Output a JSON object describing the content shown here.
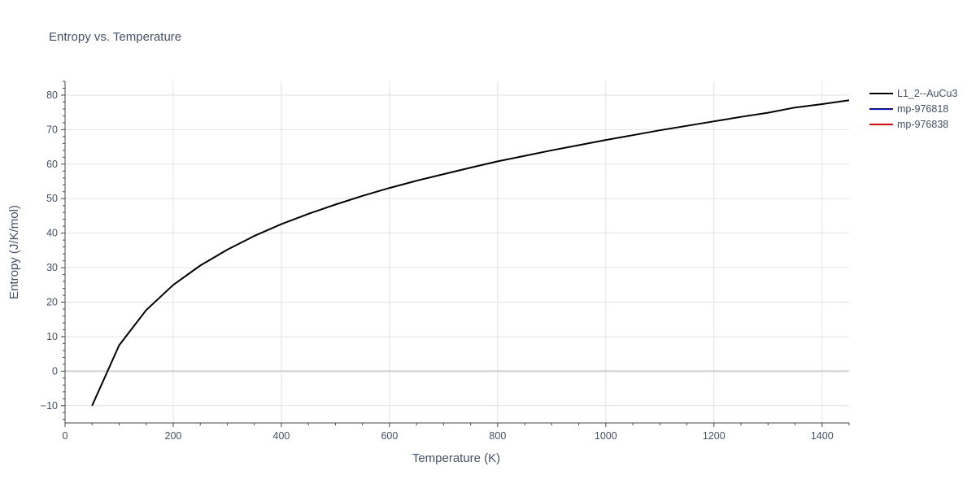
{
  "chart_data": {
    "type": "line",
    "title": "Entropy vs. Temperature",
    "xlabel": "Temperature (K)",
    "ylabel": "Entropy (J/K/mol)",
    "xlim": [
      0,
      1450
    ],
    "ylim": [
      -15,
      84
    ],
    "x_ticks": [
      0,
      200,
      400,
      600,
      800,
      1000,
      1200,
      1400
    ],
    "y_ticks": [
      -10,
      0,
      10,
      20,
      30,
      40,
      50,
      60,
      70,
      80
    ],
    "grid": true,
    "legend_position": "top-right",
    "series": [
      {
        "name": "L1_2--AuCu3",
        "color": "#000000",
        "x": [
          50,
          100,
          150,
          200,
          250,
          300,
          350,
          400,
          450,
          500,
          550,
          600,
          650,
          700,
          750,
          800,
          850,
          900,
          950,
          1000,
          1050,
          1100,
          1150,
          1200,
          1250,
          1300,
          1350,
          1400,
          1450
        ],
        "y": [
          -10,
          7.5,
          17.7,
          25.0,
          30.6,
          35.2,
          39.2,
          42.6,
          45.6,
          48.3,
          50.8,
          53.1,
          55.2,
          57.1,
          59.0,
          60.8,
          62.4,
          64.0,
          65.5,
          67.0,
          68.4,
          69.8,
          71.1,
          72.4,
          73.7,
          74.9,
          76.4,
          77.4,
          78.5
        ]
      },
      {
        "name": "mp-976818",
        "color": "#0000ff",
        "x": [],
        "y": []
      },
      {
        "name": "mp-976838",
        "color": "#ff0000",
        "x": [],
        "y": []
      }
    ]
  }
}
